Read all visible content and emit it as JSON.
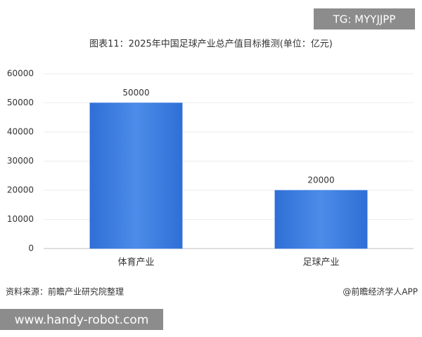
{
  "chart_data": {
    "type": "bar",
    "title": "图表11：2025年中国足球产业总产值目标推测(单位：亿元)",
    "categories": [
      "体育产业",
      "足球产业"
    ],
    "values": [
      50000,
      20000
    ],
    "color": "#3f7fe0",
    "ylim": [
      0,
      60000
    ],
    "yticks": [
      0,
      10000,
      20000,
      30000,
      40000,
      50000,
      60000
    ],
    "grid": true
  },
  "footer": {
    "source": "资料来源：前瞻产业研究院整理",
    "credit": "@前瞻经济学人APP"
  },
  "overlays": {
    "tag": "TG: MYYJJPP",
    "url": "www.handy-robot.com"
  }
}
